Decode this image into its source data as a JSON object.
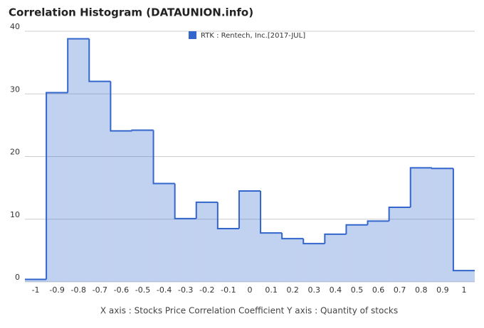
{
  "chart_data": {
    "type": "histogram",
    "title": "Correlation Histogram (DATAUNION.info)",
    "xlabel": "X axis : Stocks Price Correlation Coefficient  Y axis : Quantity of stocks",
    "bins": [
      -1.05,
      -0.95,
      -0.85,
      -0.75,
      -0.65,
      -0.55,
      -0.45,
      -0.35,
      -0.25,
      -0.15,
      -0.05,
      0.05,
      0.15,
      0.25,
      0.35,
      0.45,
      0.55,
      0.65,
      0.75,
      0.85,
      0.95,
      1.05
    ],
    "series": [
      {
        "name": "RTK : Rentech, Inc.[2017-JUL]",
        "color": "#3366cc",
        "values": [
          0.4,
          30.2,
          38.8,
          32.0,
          24.1,
          24.2,
          15.7,
          10.1,
          12.7,
          8.5,
          14.5,
          7.8,
          6.9,
          6.1,
          7.6,
          9.1,
          9.7,
          11.9,
          18.2,
          18.1,
          1.8
        ]
      }
    ],
    "xlim": [
      -1.05,
      1.05
    ],
    "xticks": [
      -1,
      -0.9,
      -0.8,
      -0.7,
      -0.6,
      -0.5,
      -0.4,
      -0.3,
      -0.2,
      -0.1,
      0,
      0.1,
      0.2,
      0.3,
      0.4,
      0.5,
      0.6,
      0.7,
      0.8,
      0.9,
      1
    ],
    "ylim": [
      0,
      40
    ],
    "yticks": [
      0,
      10,
      20,
      30,
      40
    ],
    "grid": true
  }
}
